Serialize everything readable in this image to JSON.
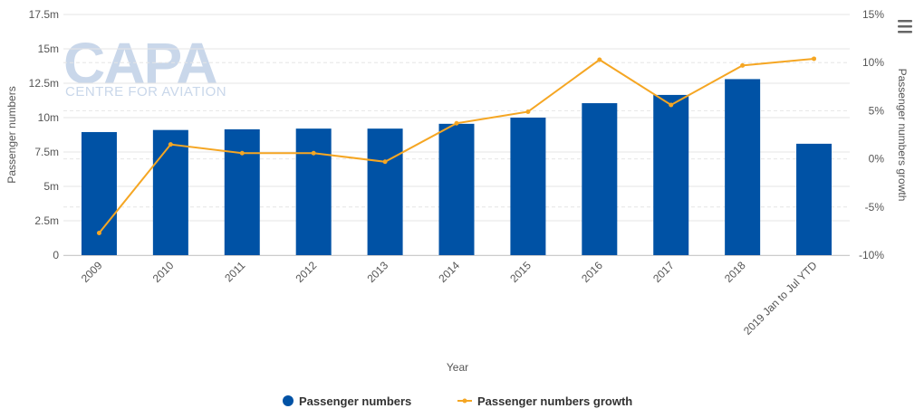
{
  "watermark": {
    "title": "CAPA",
    "subtitle": "CENTRE FOR AVIATION"
  },
  "colors": {
    "bar": "#0052a5",
    "line": "#f5a623",
    "grid": "#e6e6e6",
    "axis": "#cccccc"
  },
  "menu_icon": "hamburger-menu-icon",
  "chart_data": {
    "type": "bar",
    "title": "",
    "xlabel": "Year",
    "ylabel": "Passenger numbers",
    "y2label": "Passenger numbers growth",
    "categories": [
      "2009",
      "2010",
      "2011",
      "2012",
      "2013",
      "2014",
      "2015",
      "2016",
      "2017",
      "2018",
      "2019 Jan to Jul YTD"
    ],
    "ylim": [
      0,
      17500000
    ],
    "y_ticks": [
      0,
      2500000,
      5000000,
      7500000,
      10000000,
      12500000,
      15000000,
      17500000
    ],
    "y_tick_labels": [
      "0",
      "2.5m",
      "5m",
      "7.5m",
      "10m",
      "12.5m",
      "15m",
      "17.5m"
    ],
    "y2lim": [
      -10,
      15
    ],
    "y2_ticks": [
      -10,
      -5,
      0,
      5,
      10,
      15
    ],
    "y2_tick_labels": [
      "-10%",
      "-5%",
      "0%",
      "5%",
      "10%",
      "15%"
    ],
    "grid": true,
    "legend_position": "bottom",
    "series": [
      {
        "name": "Passenger numbers",
        "type": "bar",
        "axis": "left",
        "values": [
          8950000,
          9100000,
          9150000,
          9200000,
          9200000,
          9550000,
          10000000,
          11050000,
          11650000,
          12800000,
          8100000
        ]
      },
      {
        "name": "Passenger numbers growth",
        "type": "line",
        "axis": "right",
        "values": [
          -7.7,
          1.5,
          0.6,
          0.6,
          -0.3,
          3.7,
          4.9,
          10.3,
          5.6,
          9.7,
          10.4
        ]
      }
    ]
  }
}
